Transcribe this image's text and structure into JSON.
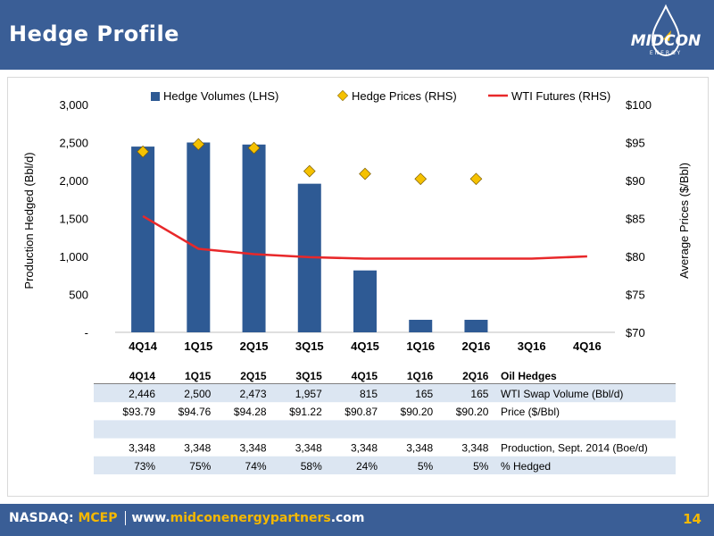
{
  "header": {
    "title": "Hedge Profile"
  },
  "logo": {
    "text": "MIDCON",
    "subtext": "ENERGY"
  },
  "footer": {
    "exchange": "NASDAQ:",
    "ticker": "MCEP",
    "url_prefix": "www.",
    "url_brand": "midconenergypartners",
    "url_suffix": ".com",
    "page": "14"
  },
  "colors": {
    "bar": "#2e5a94",
    "diamond": "#f5c100",
    "line": "#e8282a",
    "header": "#3a5e96",
    "accent": "#f5b800"
  },
  "chart_data": {
    "type": "bar",
    "categories": [
      "4Q14",
      "1Q15",
      "2Q15",
      "3Q15",
      "4Q15",
      "1Q16",
      "2Q16",
      "3Q16",
      "4Q16"
    ],
    "series": [
      {
        "name": "Hedge Volumes (LHS)",
        "type": "bar",
        "axis": "left",
        "values": [
          2446,
          2500,
          2473,
          1957,
          815,
          165,
          165,
          null,
          null
        ]
      },
      {
        "name": "Hedge Prices (RHS)",
        "type": "scatter",
        "axis": "right",
        "values": [
          93.79,
          94.76,
          94.28,
          91.22,
          90.87,
          90.2,
          90.2,
          null,
          null
        ]
      },
      {
        "name": "WTI Futures (RHS)",
        "type": "line",
        "axis": "right",
        "values": [
          85.3,
          81.0,
          80.3,
          79.9,
          79.7,
          79.7,
          79.7,
          79.7,
          80.0
        ]
      }
    ],
    "ylabel": "Production Hedged  (Bbl/d)",
    "y2label": "Average  Prices ($/Bbl)",
    "ylim": [
      0,
      3000
    ],
    "y2lim": [
      70,
      100
    ],
    "yticks": [
      "-",
      "500",
      "1,000",
      "1,500",
      "2,000",
      "2,500",
      "3,000"
    ],
    "y2ticks": [
      "$70",
      "$75",
      "$80",
      "$85",
      "$90",
      "$95",
      "$100"
    ],
    "legend_position": "top"
  },
  "table": {
    "header": [
      "4Q14",
      "1Q15",
      "2Q15",
      "3Q15",
      "4Q15",
      "1Q16",
      "2Q16"
    ],
    "header_label": "Oil Hedges",
    "rows": [
      {
        "values": [
          "2,446",
          "2,500",
          "2,473",
          "1,957",
          "815",
          "165",
          "165"
        ],
        "label": "WTI Swap Volume (Bbl/d)"
      },
      {
        "values": [
          "$93.79",
          "$94.76",
          "$94.28",
          "$91.22",
          "$90.87",
          "$90.20",
          "$90.20"
        ],
        "label": "Price ($/Bbl)"
      },
      {
        "values": [
          "",
          "",
          "",
          "",
          "",
          "",
          ""
        ],
        "label": ""
      },
      {
        "values": [
          "3,348",
          "3,348",
          "3,348",
          "3,348",
          "3,348",
          "3,348",
          "3,348"
        ],
        "label": "Production, Sept. 2014 (Boe/d)"
      },
      {
        "values": [
          "73%",
          "75%",
          "74%",
          "58%",
          "24%",
          "5%",
          "5%"
        ],
        "label": "% Hedged"
      }
    ]
  }
}
